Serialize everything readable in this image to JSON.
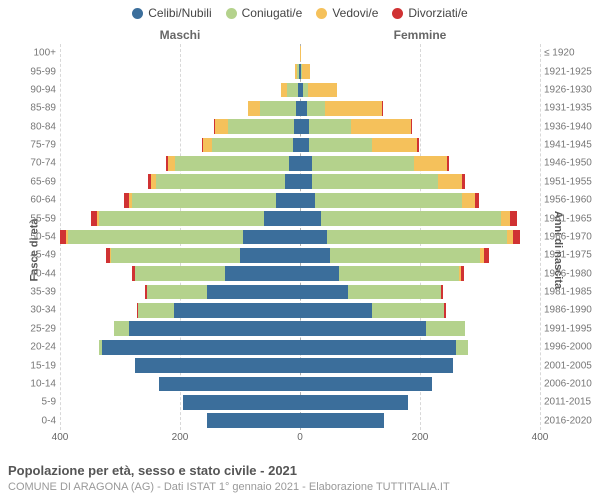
{
  "type": "population-pyramid",
  "xmax": 400,
  "xticks": [
    400,
    200,
    0,
    200,
    400
  ],
  "colors": {
    "celibi": "#3b6e9b",
    "coniugati": "#b4d28c",
    "vedovi": "#f5c15b",
    "divorziati": "#d03233",
    "grid": "#d8d8d8",
    "center_grid": "#b0b0b0",
    "bg": "#ffffff",
    "label": "#777777"
  },
  "legend": [
    {
      "key": "celibi",
      "label": "Celibi/Nubili"
    },
    {
      "key": "coniugati",
      "label": "Coniugati/e"
    },
    {
      "key": "vedovi",
      "label": "Vedovi/e"
    },
    {
      "key": "divorziati",
      "label": "Divorziati/e"
    }
  ],
  "column_headers": {
    "left": "Maschi",
    "right": "Femmine"
  },
  "y_titles": {
    "left": "Fasce di età",
    "right": "Anni di nascita"
  },
  "footer": {
    "title": "Popolazione per età, sesso e stato civile - 2021",
    "subtitle": "COMUNE DI ARAGONA (AG) - Dati ISTAT 1° gennaio 2021 - Elaborazione TUTTITALIA.IT"
  },
  "label_fontsize": 10,
  "title_fontsize": 13,
  "rows": [
    {
      "age": "100+",
      "birth": "≤ 1920",
      "m": {
        "celibi": 0,
        "coniugati": 0,
        "vedovi": 0,
        "divorziati": 0
      },
      "f": {
        "celibi": 0,
        "coniugati": 0,
        "vedovi": 2,
        "divorziati": 0
      }
    },
    {
      "age": "95-99",
      "birth": "1921-1925",
      "m": {
        "celibi": 2,
        "coniugati": 3,
        "vedovi": 3,
        "divorziati": 0
      },
      "f": {
        "celibi": 2,
        "coniugati": 2,
        "vedovi": 12,
        "divorziati": 0
      }
    },
    {
      "age": "90-94",
      "birth": "1926-1930",
      "m": {
        "celibi": 3,
        "coniugati": 18,
        "vedovi": 10,
        "divorziati": 0
      },
      "f": {
        "celibi": 5,
        "coniugati": 8,
        "vedovi": 48,
        "divorziati": 0
      }
    },
    {
      "age": "85-89",
      "birth": "1931-1935",
      "m": {
        "celibi": 6,
        "coniugati": 60,
        "vedovi": 20,
        "divorziati": 0
      },
      "f": {
        "celibi": 12,
        "coniugati": 30,
        "vedovi": 95,
        "divorziati": 2
      }
    },
    {
      "age": "80-84",
      "birth": "1936-1940",
      "m": {
        "celibi": 10,
        "coniugati": 110,
        "vedovi": 22,
        "divorziati": 2
      },
      "f": {
        "celibi": 15,
        "coniugati": 70,
        "vedovi": 100,
        "divorziati": 2
      }
    },
    {
      "age": "75-79",
      "birth": "1941-1945",
      "m": {
        "celibi": 12,
        "coniugati": 135,
        "vedovi": 14,
        "divorziati": 2
      },
      "f": {
        "celibi": 15,
        "coniugati": 105,
        "vedovi": 75,
        "divorziati": 3
      }
    },
    {
      "age": "70-74",
      "birth": "1946-1950",
      "m": {
        "celibi": 18,
        "coniugati": 190,
        "vedovi": 12,
        "divorziati": 4
      },
      "f": {
        "celibi": 20,
        "coniugati": 170,
        "vedovi": 55,
        "divorziati": 4
      }
    },
    {
      "age": "65-69",
      "birth": "1951-1955",
      "m": {
        "celibi": 25,
        "coniugati": 215,
        "vedovi": 8,
        "divorziati": 5
      },
      "f": {
        "celibi": 20,
        "coniugati": 210,
        "vedovi": 40,
        "divorziati": 5
      }
    },
    {
      "age": "60-64",
      "birth": "1956-1960",
      "m": {
        "celibi": 40,
        "coniugati": 240,
        "vedovi": 5,
        "divorziati": 8
      },
      "f": {
        "celibi": 25,
        "coniugati": 245,
        "vedovi": 22,
        "divorziati": 7
      }
    },
    {
      "age": "55-59",
      "birth": "1961-1965",
      "m": {
        "celibi": 60,
        "coniugati": 275,
        "vedovi": 4,
        "divorziati": 10
      },
      "f": {
        "celibi": 35,
        "coniugati": 300,
        "vedovi": 15,
        "divorziati": 12
      }
    },
    {
      "age": "50-54",
      "birth": "1966-1970",
      "m": {
        "celibi": 95,
        "coniugati": 295,
        "vedovi": 3,
        "divorziati": 10
      },
      "f": {
        "celibi": 45,
        "coniugati": 300,
        "vedovi": 10,
        "divorziati": 12
      }
    },
    {
      "age": "45-49",
      "birth": "1971-1975",
      "m": {
        "celibi": 100,
        "coniugati": 215,
        "vedovi": 2,
        "divorziati": 7
      },
      "f": {
        "celibi": 50,
        "coniugati": 250,
        "vedovi": 6,
        "divorziati": 9
      }
    },
    {
      "age": "40-44",
      "birth": "1976-1980",
      "m": {
        "celibi": 125,
        "coniugati": 150,
        "vedovi": 0,
        "divorziati": 5
      },
      "f": {
        "celibi": 65,
        "coniugati": 200,
        "vedovi": 3,
        "divorziati": 6
      }
    },
    {
      "age": "35-39",
      "birth": "1981-1985",
      "m": {
        "celibi": 155,
        "coniugati": 100,
        "vedovi": 0,
        "divorziati": 3
      },
      "f": {
        "celibi": 80,
        "coniugati": 155,
        "vedovi": 0,
        "divorziati": 4
      }
    },
    {
      "age": "30-34",
      "birth": "1986-1990",
      "m": {
        "celibi": 210,
        "coniugati": 60,
        "vedovi": 0,
        "divorziati": 2
      },
      "f": {
        "celibi": 120,
        "coniugati": 120,
        "vedovi": 0,
        "divorziati": 3
      }
    },
    {
      "age": "25-29",
      "birth": "1991-1995",
      "m": {
        "celibi": 285,
        "coniugati": 25,
        "vedovi": 0,
        "divorziati": 0
      },
      "f": {
        "celibi": 210,
        "coniugati": 65,
        "vedovi": 0,
        "divorziati": 0
      }
    },
    {
      "age": "20-24",
      "birth": "1996-2000",
      "m": {
        "celibi": 330,
        "coniugati": 5,
        "vedovi": 0,
        "divorziati": 0
      },
      "f": {
        "celibi": 260,
        "coniugati": 20,
        "vedovi": 0,
        "divorziati": 0
      }
    },
    {
      "age": "15-19",
      "birth": "2001-2005",
      "m": {
        "celibi": 275,
        "coniugati": 0,
        "vedovi": 0,
        "divorziati": 0
      },
      "f": {
        "celibi": 255,
        "coniugati": 0,
        "vedovi": 0,
        "divorziati": 0
      }
    },
    {
      "age": "10-14",
      "birth": "2006-2010",
      "m": {
        "celibi": 235,
        "coniugati": 0,
        "vedovi": 0,
        "divorziati": 0
      },
      "f": {
        "celibi": 220,
        "coniugati": 0,
        "vedovi": 0,
        "divorziati": 0
      }
    },
    {
      "age": "5-9",
      "birth": "2011-2015",
      "m": {
        "celibi": 195,
        "coniugati": 0,
        "vedovi": 0,
        "divorziati": 0
      },
      "f": {
        "celibi": 180,
        "coniugati": 0,
        "vedovi": 0,
        "divorziati": 0
      }
    },
    {
      "age": "0-4",
      "birth": "2016-2020",
      "m": {
        "celibi": 155,
        "coniugati": 0,
        "vedovi": 0,
        "divorziati": 0
      },
      "f": {
        "celibi": 140,
        "coniugati": 0,
        "vedovi": 0,
        "divorziati": 0
      }
    }
  ]
}
